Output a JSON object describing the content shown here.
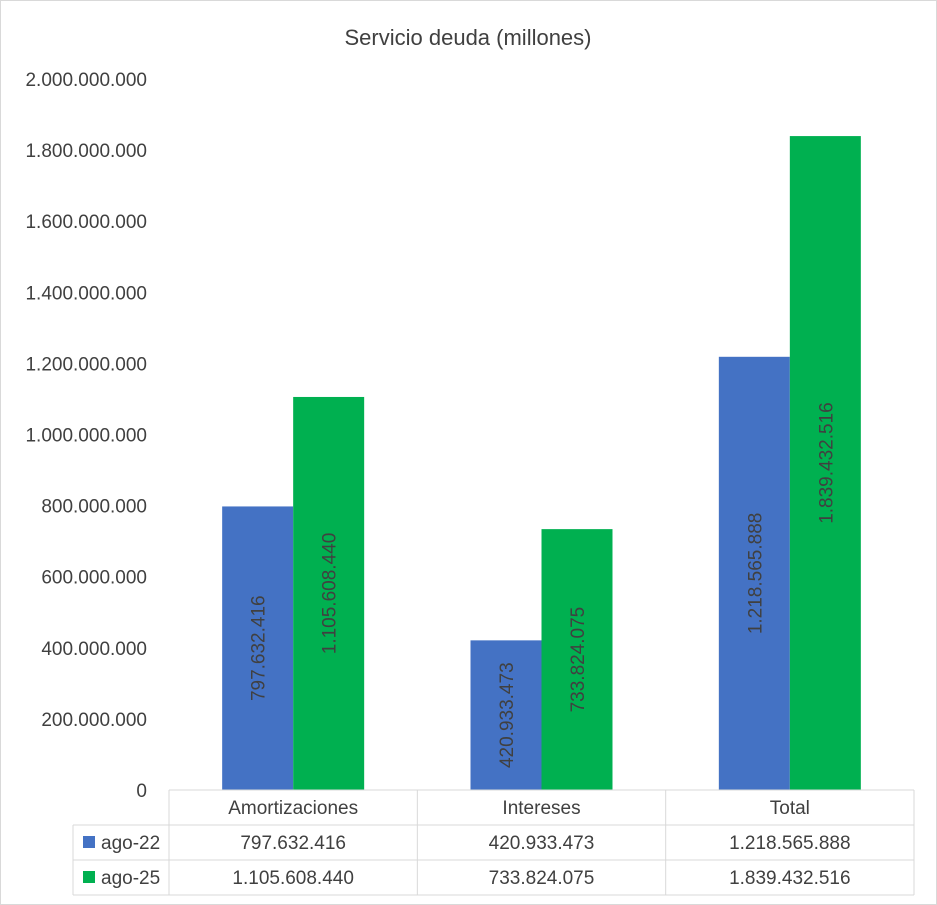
{
  "chart_data": {
    "type": "bar",
    "title": "Servicio deuda (millones)",
    "categories": [
      "Amortizaciones",
      "Intereses",
      "Total"
    ],
    "series": [
      {
        "name": "ago-22",
        "color": "#4472c4",
        "values": [
          797632416,
          420933473,
          1218565888
        ],
        "labels": [
          "797.632.416",
          "420.933.473",
          "1.218.565.888"
        ]
      },
      {
        "name": "ago-25",
        "color": "#00b050",
        "values": [
          1105608440,
          733824075,
          1839432516
        ],
        "labels": [
          "1.105.608.440",
          "733.824.075",
          "1.839.432.516"
        ]
      }
    ],
    "ylim": [
      0,
      2000000000
    ],
    "yticks": [
      0,
      200000000,
      400000000,
      600000000,
      800000000,
      1000000000,
      1200000000,
      1400000000,
      1600000000,
      1800000000,
      2000000000
    ],
    "ytick_labels": [
      "0",
      "200.000.000",
      "400.000.000",
      "600.000.000",
      "800.000.000",
      "1.000.000.000",
      "1.200.000.000",
      "1.400.000.000",
      "1.600.000.000",
      "1.800.000.000",
      "2.000.000.000"
    ],
    "grid": false,
    "legend": "data-table-left",
    "data_table": true
  }
}
